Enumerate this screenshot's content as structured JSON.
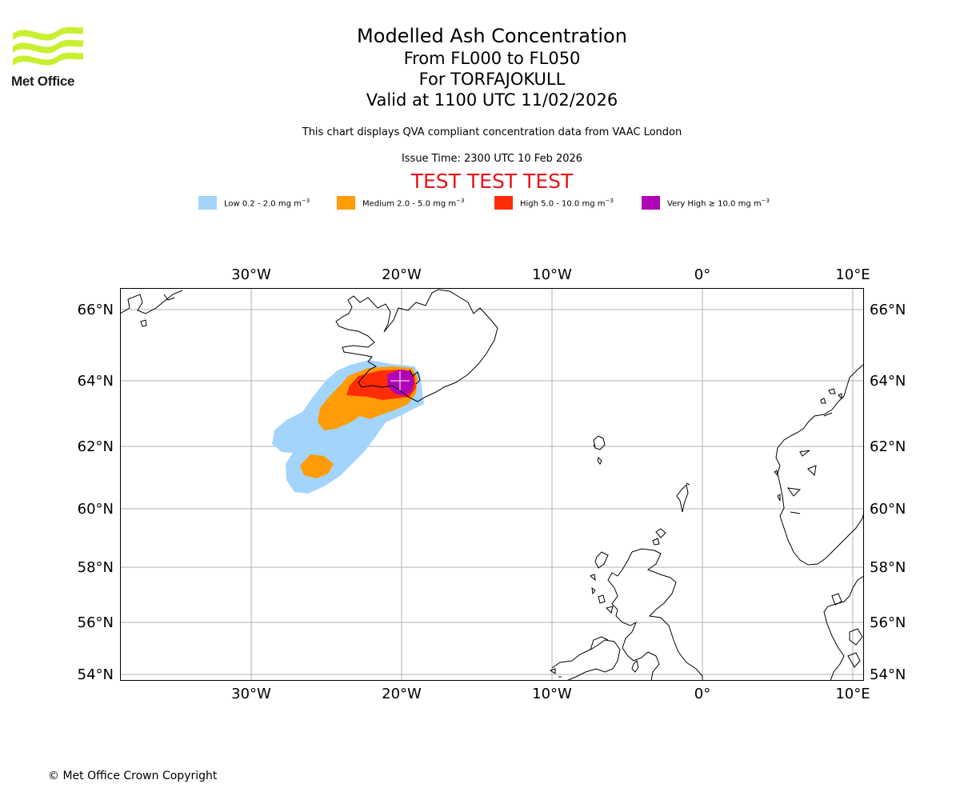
{
  "logo": {
    "text": "Met Office",
    "accent": "#c8f031"
  },
  "titles": {
    "main": "Modelled Ash Concentration",
    "levels": "From FL000 to FL050",
    "volcano": "For TORFAJOKULL",
    "valid": "Valid at 1100 UTC 11/02/2026"
  },
  "subtitle": "This chart displays QVA compliant concentration data from VAAC London",
  "issue_time": "Issue Time: 2300 UTC 10 Feb 2026",
  "test_banner": "TEST TEST TEST",
  "legend": [
    {
      "label_main": "Low 0.2 - 2.0 mg m",
      "sup": "−3",
      "color": "#a3d4fc"
    },
    {
      "label_main": "Medium 2.0 - 5.0 mg m",
      "sup": "−3",
      "color": "#ff9c08"
    },
    {
      "label_main": "High 5.0 - 10.0 mg m",
      "sup": "−3",
      "color": "#ff2c05"
    },
    {
      "label_main": "Very High  ≥  10.0 mg m",
      "sup": "−3",
      "color": "#b005b6"
    }
  ],
  "map": {
    "lon_ticks": [
      "30°W",
      "20°W",
      "10°W",
      "0°",
      "10°E"
    ],
    "lat_ticks": [
      "66°N",
      "64°N",
      "62°N",
      "60°N",
      "58°N",
      "56°N",
      "54°N"
    ],
    "gridline_color": "#b0b0b0"
  },
  "copyright": "© Met Office Crown Copyright"
}
